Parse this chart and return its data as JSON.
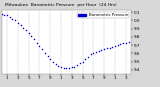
{
  "title": "Milwaukee  Barometric Pressure  per Hour  (24 Hrs)",
  "bg_color": "#d8d8d8",
  "plot_bg_color": "#ffffff",
  "dot_color": "#0000cc",
  "legend_color": "#0000cc",
  "grid_color": "#999999",
  "ylim": [
    29.35,
    30.12
  ],
  "yticks": [
    29.4,
    29.5,
    29.6,
    29.7,
    29.8,
    29.9,
    30.0,
    30.1
  ],
  "ytick_labels": [
    "9.4",
    "9.5",
    "9.6",
    "9.7",
    "9.8",
    "9.9",
    "0.0",
    "0.1"
  ],
  "hours": [
    0,
    0.5,
    1,
    1.5,
    2,
    2.5,
    3,
    3.5,
    4,
    4.5,
    5,
    5.5,
    6,
    6.5,
    7,
    7.5,
    8,
    8.5,
    9,
    9.5,
    10,
    10.5,
    11,
    11.5,
    12,
    12.5,
    13,
    13.5,
    14,
    14.5,
    15,
    15.5,
    16,
    16.5,
    17,
    17.5,
    18,
    18.5,
    19,
    19.5,
    20,
    20.5,
    21,
    21.5,
    22,
    22.5,
    23,
    23.5
  ],
  "pressure": [
    30.08,
    30.07,
    30.06,
    30.04,
    30.02,
    30.0,
    29.97,
    29.94,
    29.91,
    29.88,
    29.85,
    29.81,
    29.77,
    29.73,
    29.69,
    29.65,
    29.61,
    29.57,
    29.53,
    29.5,
    29.47,
    29.45,
    29.43,
    29.42,
    29.42,
    29.42,
    29.43,
    29.44,
    29.46,
    29.48,
    29.5,
    29.53,
    29.56,
    29.59,
    29.61,
    29.62,
    29.63,
    29.64,
    29.65,
    29.66,
    29.67,
    29.68,
    29.69,
    29.7,
    29.71,
    29.72,
    29.73,
    29.74
  ],
  "grid_x": [
    1,
    3,
    5,
    7,
    9,
    11,
    13,
    15,
    17,
    19,
    21,
    23
  ],
  "xticks": [
    1,
    3,
    5,
    7,
    9,
    11,
    13,
    15,
    17,
    19,
    21,
    23
  ],
  "x_labels": [
    "1",
    "3",
    "5",
    "7",
    "9",
    "1",
    "3",
    "5",
    "7",
    "9",
    "1",
    "3"
  ],
  "dot_size": 1.2,
  "tick_fontsize": 3.0,
  "title_fontsize": 3.2,
  "legend_fontsize": 2.8,
  "legend_label": "Barometric Pressure"
}
